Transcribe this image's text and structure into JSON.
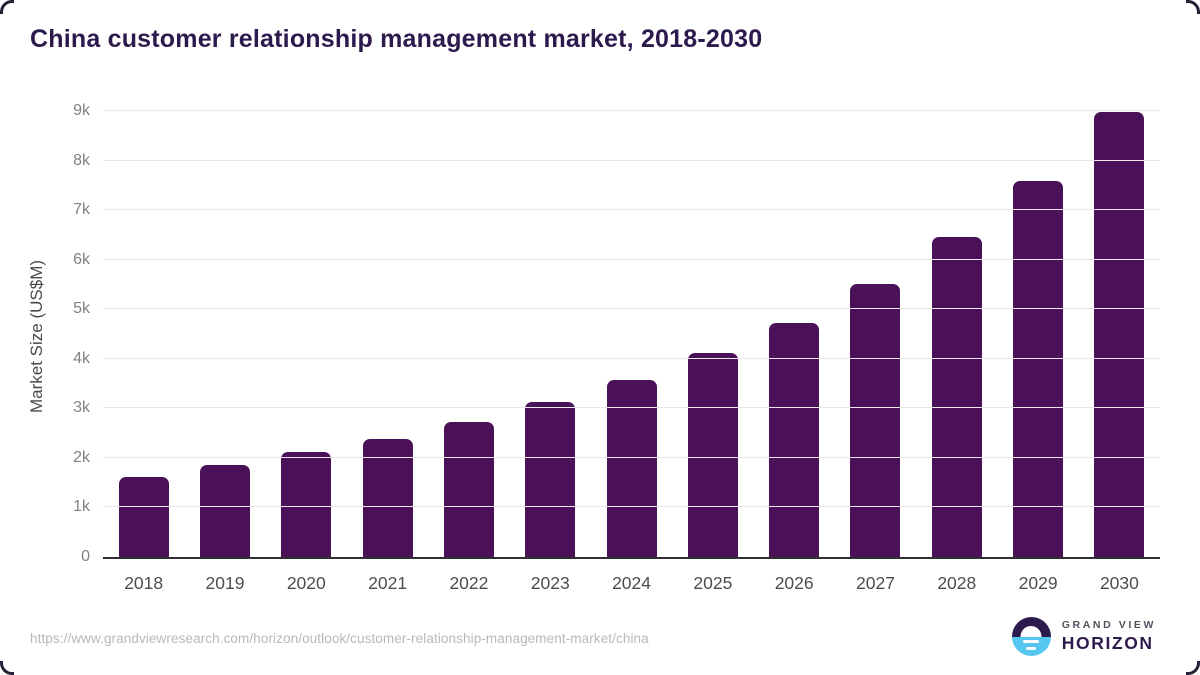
{
  "chart_data": {
    "type": "bar",
    "title": "China customer relationship management market, 2018-2030",
    "categories": [
      "2018",
      "2019",
      "2020",
      "2021",
      "2022",
      "2023",
      "2024",
      "2025",
      "2026",
      "2027",
      "2028",
      "2029",
      "2030"
    ],
    "values": [
      1620,
      1860,
      2120,
      2390,
      2720,
      3130,
      3580,
      4110,
      4720,
      5510,
      6450,
      7580,
      8990
    ],
    "xlabel": "",
    "ylabel": "Market Size (US$M)",
    "ylim": [
      0,
      9000
    ],
    "yticks": [
      {
        "label": "0",
        "value": 0
      },
      {
        "label": "1k",
        "value": 1000
      },
      {
        "label": "2k",
        "value": 2000
      },
      {
        "label": "3k",
        "value": 3000
      },
      {
        "label": "4k",
        "value": 4000
      },
      {
        "label": "5k",
        "value": 5000
      },
      {
        "label": "6k",
        "value": 6000
      },
      {
        "label": "7k",
        "value": 7000
      },
      {
        "label": "8k",
        "value": 8000
      },
      {
        "label": "9k",
        "value": 9000
      }
    ],
    "grid": "horizontal-light",
    "legend": "none",
    "bar_color": "#4a1158",
    "title_color": "#2c1a4d"
  },
  "footer": {
    "source_url": "https://www.grandviewresearch.com/horizon/outlook/customer-relationship-management-market/china",
    "logo": {
      "line1": "GRAND VIEW",
      "line2": "HORIZON",
      "icon": "horizon-sun-icon"
    }
  }
}
